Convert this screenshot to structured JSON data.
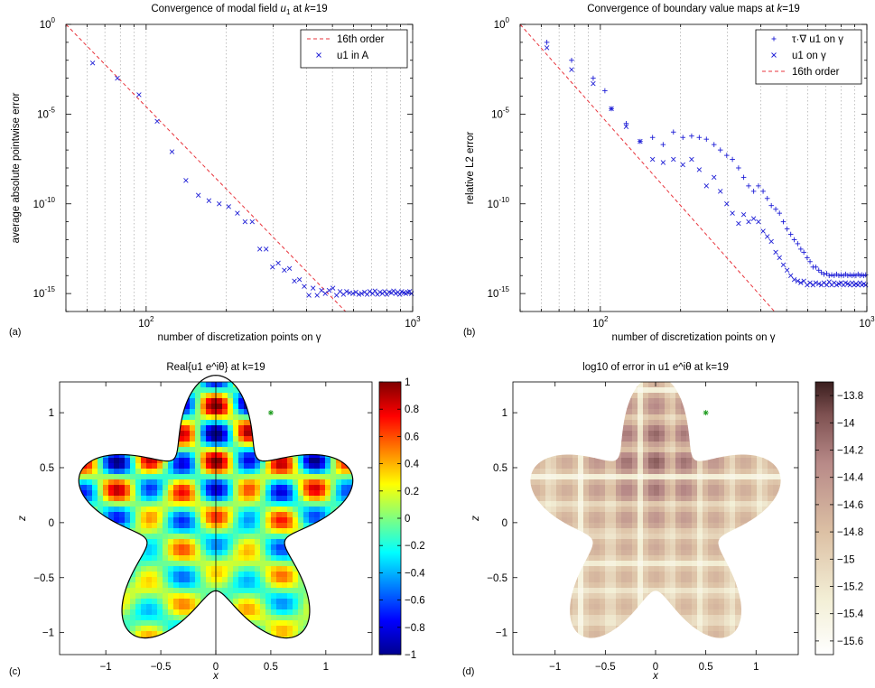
{
  "chart_data": [
    {
      "id": "a",
      "type": "scatter",
      "panel_label": "(a)",
      "title": "Convergence of modal field u1 at k=19",
      "title_parts": [
        "Convergence of modal field ",
        "u",
        "1",
        " at ",
        "k",
        "=19"
      ],
      "xlabel": "number of discretization points on γ",
      "ylabel": "average absolute pointwise error",
      "xscale": "log",
      "yscale": "log",
      "xlim": [
        50,
        1000
      ],
      "ylim": [
        1e-16,
        1
      ],
      "x_ticks": [
        {
          "base": "10",
          "exp": "2",
          "value": 100
        },
        {
          "base": "10",
          "exp": "3",
          "value": 1000
        }
      ],
      "y_ticks": [
        {
          "base": "10",
          "exp": "0",
          "value": 1
        },
        {
          "base": "10",
          "exp": "-5",
          "value": 1e-05
        },
        {
          "base": "10",
          "exp": "-10",
          "value": 1e-10
        },
        {
          "base": "10",
          "exp": "-15",
          "value": 1e-15
        }
      ],
      "grid": "x-major-minor",
      "legend_position": "top-right",
      "series": [
        {
          "name": "16th order",
          "kind": "line",
          "color": "#e8343c",
          "x": [
            50,
            560
          ],
          "y": [
            1,
            1e-16
          ]
        },
        {
          "name": "u1 in A",
          "kind": "points",
          "marker": "x",
          "color": "#1f1fd6",
          "x": [
            63,
            78,
            94,
            110,
            125,
            141,
            157,
            172,
            188,
            204,
            220,
            235,
            250,
            267,
            282,
            298,
            313,
            330,
            345,
            360,
            376,
            392,
            408,
            423,
            438,
            455,
            470,
            486,
            502,
            518,
            534,
            550,
            565,
            580,
            597,
            612,
            628,
            643,
            660,
            675,
            690,
            707,
            722,
            738,
            754,
            770,
            785,
            800,
            817,
            832,
            848,
            864,
            880,
            895,
            910,
            927,
            942,
            958,
            974,
            990
          ],
          "y": [
            0.007,
            0.001,
            0.00012,
            4e-06,
            8e-08,
            2e-09,
            3e-10,
            1.5e-10,
            1e-10,
            7e-11,
            3e-11,
            1e-11,
            1e-11,
            3e-13,
            3e-13,
            3e-14,
            5e-14,
            2e-14,
            2.5e-14,
            5e-15,
            6e-15,
            2.5e-15,
            8e-16,
            2e-15,
            8e-16,
            1.5e-15,
            1e-15,
            1.5e-15,
            2e-15,
            8e-16,
            1.3e-15,
            9e-16,
            1.3e-15,
            1.1e-15,
            1e-15,
            1.2e-15,
            9e-16,
            1e-15,
            1.2e-15,
            9e-16,
            1.3e-15,
            1e-15,
            1.4e-15,
            9e-16,
            1.2e-15,
            1e-15,
            1.3e-15,
            9e-16,
            1.2e-15,
            1.1e-15,
            1.4e-15,
            1e-15,
            1.2e-15,
            9e-16,
            1.3e-15,
            1.1e-15,
            1e-15,
            1.2e-15,
            1.3e-15,
            1e-15
          ]
        }
      ]
    },
    {
      "id": "b",
      "type": "scatter",
      "panel_label": "(b)",
      "title": "Convergence of boundary value maps at k=19",
      "title_parts": [
        "Convergence of boundary value maps at ",
        "k",
        "=19"
      ],
      "xlabel": "number of discretization points on γ",
      "ylabel": "relative L2 error",
      "xscale": "log",
      "yscale": "log",
      "xlim": [
        50,
        1000
      ],
      "ylim": [
        1e-16,
        1
      ],
      "x_ticks": [
        {
          "base": "10",
          "exp": "2",
          "value": 100
        },
        {
          "base": "10",
          "exp": "3",
          "value": 1000
        }
      ],
      "y_ticks": [
        {
          "base": "10",
          "exp": "0",
          "value": 1
        },
        {
          "base": "10",
          "exp": "-5",
          "value": 1e-05
        },
        {
          "base": "10",
          "exp": "-10",
          "value": 1e-10
        },
        {
          "base": "10",
          "exp": "-15",
          "value": 1e-15
        }
      ],
      "grid": "x-major-minor",
      "legend_position": "top-right",
      "series": [
        {
          "name": "τ·∇ u1 on γ",
          "kind": "points",
          "marker": "+",
          "color": "#1f1fd6",
          "x": [
            63,
            78,
            94,
            104,
            110,
            125,
            141,
            157,
            172,
            188,
            204,
            220,
            235,
            250,
            267,
            282,
            298,
            313,
            330,
            345,
            360,
            376,
            392,
            408,
            423,
            438,
            455,
            470,
            486,
            502,
            518,
            534,
            550,
            565,
            580,
            597,
            612,
            628,
            643,
            660,
            675,
            690,
            707,
            722,
            738,
            754,
            770,
            785,
            800,
            817,
            832,
            848,
            864,
            880,
            895,
            910,
            927,
            942,
            958,
            974,
            990
          ],
          "y": [
            0.1,
            0.01,
            0.001,
            0.0002,
            2e-05,
            3e-06,
            3e-07,
            5e-07,
            2e-07,
            1e-06,
            5e-07,
            6e-07,
            5e-07,
            4e-07,
            2e-07,
            1e-07,
            5e-08,
            3e-08,
            1e-08,
            3e-09,
            1e-09,
            5e-10,
            1e-09,
            5e-10,
            2e-10,
            8e-11,
            5e-11,
            3e-11,
            1e-11,
            4e-12,
            2e-12,
            1e-12,
            6e-13,
            3e-13,
            2e-13,
            1e-13,
            6e-14,
            3e-14,
            3e-14,
            2e-14,
            1.5e-14,
            1.2e-14,
            1.3e-14,
            1e-14,
            1.1e-14,
            1e-14,
            1.2e-14,
            1e-14,
            1.1e-14,
            1e-14,
            1.2e-14,
            1e-14,
            1.1e-14,
            1e-14,
            1.1e-14,
            1e-14,
            1.2e-14,
            1e-14,
            1.1e-14,
            1e-14,
            1.1e-14
          ]
        },
        {
          "name": "u1 on γ",
          "kind": "points",
          "marker": "x",
          "color": "#1f1fd6",
          "x": [
            63,
            78,
            94,
            110,
            125,
            141,
            157,
            172,
            188,
            204,
            220,
            235,
            250,
            267,
            282,
            298,
            313,
            330,
            345,
            360,
            376,
            392,
            408,
            423,
            438,
            455,
            470,
            486,
            502,
            518,
            534,
            550,
            565,
            580,
            597,
            612,
            628,
            643,
            660,
            675,
            690,
            707,
            722,
            738,
            754,
            770,
            785,
            800,
            817,
            832,
            848,
            864,
            880,
            895,
            910,
            927,
            942,
            958,
            974,
            990
          ],
          "y": [
            0.05,
            0.003,
            0.0005,
            2e-05,
            2e-06,
            3e-07,
            3e-08,
            2e-08,
            3e-08,
            1.5e-08,
            3e-08,
            8e-09,
            1e-09,
            3e-09,
            5e-10,
            1e-10,
            3e-11,
            8e-12,
            2.5e-11,
            1e-11,
            1.5e-11,
            1e-11,
            3e-12,
            1.5e-12,
            8e-13,
            2e-13,
            1e-13,
            4e-14,
            2e-14,
            1e-14,
            6e-15,
            5e-15,
            4e-15,
            5e-15,
            3e-15,
            4e-15,
            3e-15,
            4e-15,
            3.5e-15,
            3e-15,
            4e-15,
            3e-15,
            4.5e-15,
            3e-15,
            4e-15,
            3e-15,
            3.5e-15,
            4e-15,
            3e-15,
            4e-15,
            3.5e-15,
            3e-15,
            4e-15,
            3e-15,
            3.5e-15,
            3e-15,
            4e-15,
            3e-15,
            3.5e-15,
            3e-15
          ]
        },
        {
          "name": "16th order",
          "kind": "line",
          "color": "#e8343c",
          "x": [
            50,
            450
          ],
          "y": [
            1,
            1e-16
          ]
        }
      ]
    },
    {
      "id": "c",
      "type": "heatmap",
      "panel_label": "(c)",
      "title": "Real{u1 e^iθ} at k=19",
      "xlabel": "x",
      "ylabel": "z",
      "xlim": [
        -1.42,
        1.42
      ],
      "ylim": [
        -1.2,
        1.28
      ],
      "x_ticks": [
        "−1",
        "−0.5",
        "0",
        "0.5",
        "1"
      ],
      "x_tick_values": [
        -1,
        -0.5,
        0,
        0.5,
        1
      ],
      "y_ticks": [
        "−1",
        "−0.5",
        "0",
        "0.5",
        "1"
      ],
      "y_tick_values": [
        -1,
        -0.5,
        0,
        0.5,
        1
      ],
      "colormap": "jet",
      "clim": [
        -1,
        1
      ],
      "colorbar_ticks": [
        "1",
        "0.8",
        "0.6",
        "0.4",
        "0.2",
        "0",
        "−0.2",
        "−0.4",
        "−0.6",
        "−0.8",
        "−1"
      ],
      "colorbar_values": [
        1,
        0.8,
        0.6,
        0.4,
        0.2,
        0,
        -0.2,
        -0.4,
        -0.6,
        -0.8,
        -1
      ],
      "source_point": {
        "x": 0.5,
        "z": 1.0,
        "color": "#1a9a1a"
      }
    },
    {
      "id": "d",
      "type": "heatmap",
      "panel_label": "(d)",
      "title": "log10 of error in u1 e^iθ at k=19",
      "xlabel": "x",
      "ylabel": "z",
      "xlim": [
        -1.42,
        1.42
      ],
      "ylim": [
        -1.2,
        1.28
      ],
      "x_ticks": [
        "−1",
        "−0.5",
        "0",
        "0.5",
        "1"
      ],
      "x_tick_values": [
        -1,
        -0.5,
        0,
        0.5,
        1
      ],
      "y_ticks": [
        "−1",
        "−0.5",
        "0",
        "0.5",
        "1"
      ],
      "y_tick_values": [
        -1,
        -0.5,
        0,
        0.5,
        1
      ],
      "colormap": "pink-reversed",
      "clim": [
        -15.7,
        -13.7
      ],
      "colorbar_ticks": [
        "−13.8",
        "−14",
        "−14.2",
        "−14.4",
        "−14.6",
        "−14.8",
        "−15",
        "−15.2",
        "−15.4",
        "−15.6"
      ],
      "colorbar_values": [
        -13.8,
        -14,
        -14.2,
        -14.4,
        -14.6,
        -14.8,
        -15,
        -15.2,
        -15.4,
        -15.6
      ],
      "source_point": {
        "x": 0.5,
        "z": 1.0,
        "color": "#1a9a1a"
      }
    }
  ]
}
